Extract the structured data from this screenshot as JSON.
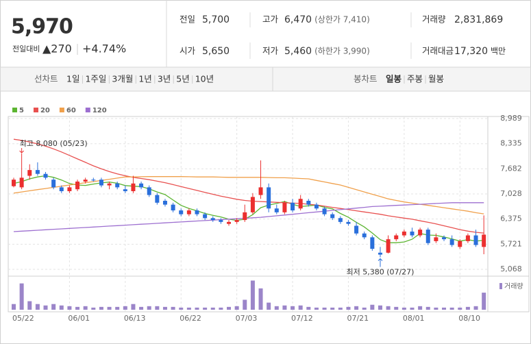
{
  "header": {
    "price": "5,970",
    "change_label": "전일대비",
    "change": "▲270",
    "change_pct": "+4.74%",
    "color": "#e0141e"
  },
  "quote": {
    "items": [
      {
        "label": "전일",
        "value": "5,700"
      },
      {
        "label": "고가",
        "value": "6,470",
        "note": "(상한가 7,410)",
        "color": "#e0141e"
      },
      {
        "label": "거래량",
        "value": "2,831,869"
      },
      {
        "label": "시가",
        "value": "5,650",
        "color": "#1a62d4"
      },
      {
        "label": "저가",
        "value": "5,460",
        "note": "(하한가 3,990)",
        "color": "#1a62d4"
      },
      {
        "label": "거래대금",
        "value": "17,320",
        "unit": "백만"
      }
    ]
  },
  "tabs": {
    "line_label": "선차트",
    "line_periods": [
      "1일",
      "1주일",
      "3개월",
      "1년",
      "3년",
      "5년",
      "10년"
    ],
    "candle_label": "봉차트",
    "candle_periods": [
      "일봉",
      "주봉",
      "월봉"
    ],
    "selected": "일봉"
  },
  "chart_data": {
    "type": "candlestick",
    "categories": [
      "05/22",
      null,
      null,
      null,
      null,
      null,
      null,
      "06/01",
      null,
      null,
      null,
      null,
      null,
      null,
      "06/13",
      null,
      null,
      null,
      null,
      null,
      null,
      "06/22",
      null,
      null,
      null,
      null,
      null,
      null,
      "07/03",
      null,
      null,
      null,
      null,
      null,
      null,
      "07/12",
      null,
      null,
      null,
      null,
      null,
      null,
      "07/21",
      null,
      null,
      null,
      null,
      null,
      null,
      "08/01",
      null,
      null,
      null,
      null,
      null,
      null,
      "08/10",
      null,
      null,
      null
    ],
    "open": [
      7230,
      7200,
      7500,
      7650,
      7550,
      7400,
      7200,
      7100,
      7150,
      7350,
      7400,
      7400,
      7250,
      7300,
      7150,
      7100,
      7300,
      7200,
      7000,
      6850,
      6750,
      6600,
      6500,
      6600,
      6500,
      6400,
      6350,
      6250,
      6300,
      6350,
      6550,
      7000,
      7200,
      6650,
      6550,
      6800,
      6650,
      6850,
      6750,
      6650,
      6500,
      6400,
      6300,
      6200,
      6000,
      5900,
      5500,
      5500,
      5850,
      5950,
      6050,
      5950,
      6100,
      5800,
      5900,
      5850,
      5650,
      5800,
      5950,
      5650
    ],
    "high": [
      7450,
      8080,
      7800,
      7850,
      7600,
      7450,
      7250,
      7250,
      7400,
      7450,
      7450,
      7450,
      7350,
      7350,
      7250,
      7500,
      7350,
      7250,
      7050,
      6900,
      6800,
      6650,
      6650,
      6650,
      6550,
      6450,
      6400,
      6350,
      6400,
      6750,
      7050,
      7900,
      7300,
      6750,
      6850,
      6900,
      7000,
      6900,
      6800,
      6700,
      6550,
      6450,
      6350,
      6300,
      6050,
      5950,
      5650,
      5950,
      6000,
      6100,
      6150,
      6150,
      6150,
      6000,
      5950,
      5950,
      5850,
      6000,
      6100,
      6470
    ],
    "low": [
      7200,
      7150,
      7400,
      7500,
      7400,
      7150,
      7050,
      7050,
      7100,
      7300,
      7350,
      7200,
      7150,
      7150,
      7050,
      7050,
      7150,
      6950,
      6750,
      6700,
      6550,
      6450,
      6450,
      6450,
      6350,
      6300,
      6250,
      6200,
      6250,
      6300,
      6500,
      6900,
      6550,
      6500,
      6500,
      6550,
      6600,
      6700,
      6600,
      6450,
      6350,
      6250,
      6200,
      5950,
      5850,
      5550,
      5380,
      5480,
      5800,
      5900,
      5900,
      5900,
      5700,
      5750,
      5800,
      5650,
      5600,
      5750,
      5650,
      5460
    ],
    "close": [
      7400,
      7450,
      7650,
      7550,
      7450,
      7200,
      7100,
      7200,
      7350,
      7400,
      7380,
      7250,
      7300,
      7200,
      7100,
      7300,
      7200,
      7000,
      6800,
      6750,
      6600,
      6500,
      6600,
      6500,
      6400,
      6350,
      6300,
      6300,
      6350,
      6550,
      6950,
      7200,
      6650,
      6550,
      6800,
      6600,
      6900,
      6750,
      6650,
      6500,
      6400,
      6300,
      6250,
      6000,
      5900,
      5600,
      5450,
      5850,
      5950,
      6050,
      5950,
      6100,
      5750,
      5900,
      5850,
      5700,
      5800,
      5950,
      5700,
      5970
    ],
    "up_color": "#eb2f2f",
    "down_color": "#2a6fdb",
    "ylim": [
      5068,
      8989
    ],
    "yticks": [
      {
        "value": 5068,
        "label": "5,068"
      },
      {
        "value": 5721,
        "label": "5,721"
      },
      {
        "value": 6375,
        "label": "6,375"
      },
      {
        "value": 7028,
        "label": "7,028"
      },
      {
        "value": 7682,
        "label": "7,682"
      },
      {
        "value": 8335,
        "label": "8,335"
      },
      {
        "value": 8989,
        "label": "8,989"
      }
    ],
    "grid": true,
    "lines": [
      {
        "name": "5",
        "color": "#5cb531",
        "values": [
          7300,
          7350,
          7420,
          7470,
          7500,
          7460,
          7390,
          7300,
          7260,
          7250,
          7286,
          7316,
          7336,
          7306,
          7246,
          7230,
          7220,
          7160,
          7080,
          7010,
          6870,
          6730,
          6650,
          6590,
          6520,
          6470,
          6430,
          6370,
          6340,
          6370,
          6490,
          6670,
          6740,
          6780,
          6830,
          6760,
          6700,
          6720,
          6740,
          6680,
          6640,
          6520,
          6420,
          6290,
          6170,
          6010,
          5840,
          5760,
          5760,
          5780,
          5850,
          6000,
          5960,
          5950,
          5910,
          5860,
          5800,
          5840,
          5800,
          5824
        ]
      },
      {
        "name": "20",
        "color": "#e8504f",
        "values": [
          8450,
          8420,
          8380,
          8330,
          8270,
          8200,
          8120,
          8030,
          7940,
          7850,
          7760,
          7680,
          7610,
          7550,
          7500,
          7460,
          7430,
          7400,
          7360,
          7320,
          7270,
          7220,
          7170,
          7120,
          7070,
          7020,
          6970,
          6930,
          6890,
          6860,
          6840,
          6830,
          6820,
          6810,
          6800,
          6790,
          6780,
          6760,
          6740,
          6710,
          6680,
          6650,
          6620,
          6590,
          6560,
          6530,
          6500,
          6460,
          6430,
          6400,
          6370,
          6330,
          6290,
          6250,
          6200,
          6150,
          6100,
          6060,
          6030,
          6010
        ]
      },
      {
        "name": "60",
        "color": "#f0a04b",
        "values": [
          7050,
          7080,
          7110,
          7140,
          7170,
          7200,
          7230,
          7260,
          7290,
          7320,
          7350,
          7380,
          7410,
          7440,
          7470,
          7470,
          7475,
          7480,
          7480,
          7480,
          7480,
          7480,
          7475,
          7470,
          7470,
          7470,
          7465,
          7460,
          7460,
          7460,
          7460,
          7460,
          7455,
          7450,
          7450,
          7440,
          7430,
          7420,
          7380,
          7340,
          7300,
          7260,
          7200,
          7140,
          7080,
          7020,
          6960,
          6900,
          6860,
          6820,
          6790,
          6760,
          6730,
          6700,
          6670,
          6640,
          6610,
          6580,
          6540,
          6510
        ]
      },
      {
        "name": "120",
        "color": "#9d6fd0",
        "values": [
          6048,
          6060,
          6072,
          6084,
          6096,
          6108,
          6120,
          6132,
          6144,
          6156,
          6168,
          6180,
          6192,
          6204,
          6216,
          6228,
          6240,
          6252,
          6264,
          6276,
          6288,
          6300,
          6312,
          6324,
          6336,
          6348,
          6360,
          6372,
          6384,
          6396,
          6408,
          6420,
          6440,
          6460,
          6480,
          6500,
          6520,
          6540,
          6560,
          6580,
          6600,
          6620,
          6640,
          6660,
          6680,
          6700,
          6710,
          6720,
          6730,
          6740,
          6750,
          6760,
          6770,
          6780,
          6790,
          6800,
          6800,
          6800,
          6800,
          6800
        ]
      }
    ],
    "volume": {
      "name": "거래량",
      "color": "#9b85c9",
      "ylim": [
        0,
        5000000
      ],
      "values": [
        944000,
        4366000,
        1416000,
        944000,
        708000,
        944000,
        708000,
        590000,
        472000,
        590000,
        354000,
        472000,
        472000,
        472000,
        590000,
        944000,
        472000,
        590000,
        590000,
        472000,
        472000,
        354000,
        354000,
        354000,
        354000,
        354000,
        354000,
        472000,
        590000,
        1652000,
        4838000,
        3540000,
        1180000,
        590000,
        708000,
        590000,
        708000,
        472000,
        354000,
        354000,
        354000,
        354000,
        472000,
        590000,
        354000,
        826000,
        708000,
        590000,
        472000,
        354000,
        354000,
        590000,
        472000,
        354000,
        354000,
        354000,
        354000,
        472000,
        590000,
        2831869
      ]
    },
    "annotations": {
      "high": "최고 8,080 (05/23)",
      "low": "최저 5,380 (07/27)"
    }
  }
}
